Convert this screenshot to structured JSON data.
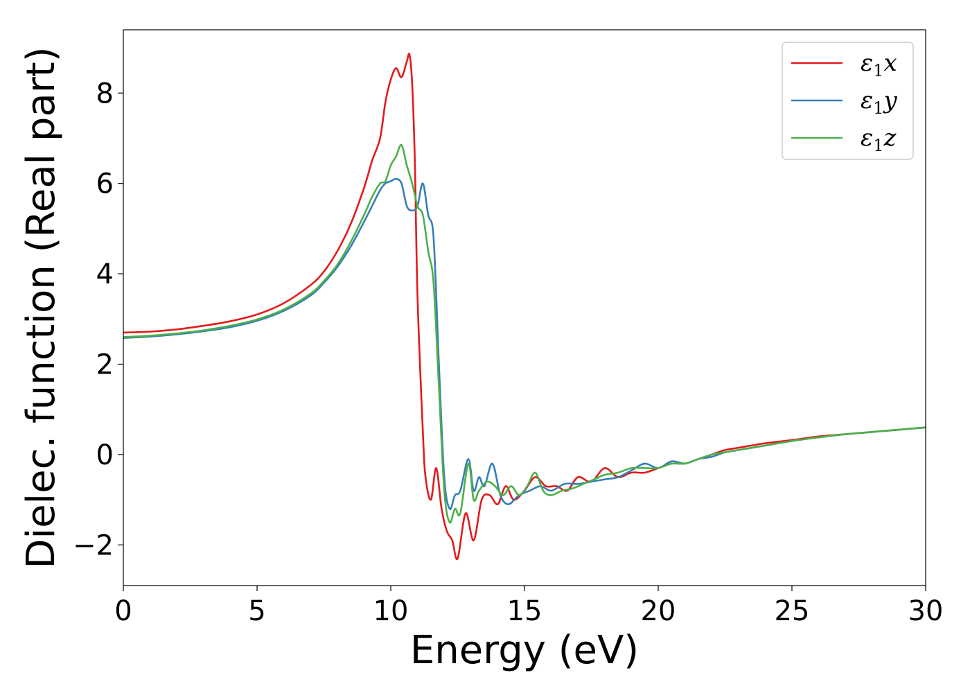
{
  "chart_data": {
    "type": "line",
    "xlabel": "Energy (eV)",
    "ylabel": "Dielec. function (Real part)",
    "xlim": [
      0,
      30
    ],
    "ylim": [
      -2.9,
      9.4
    ],
    "xticks": [
      0,
      5,
      10,
      15,
      20,
      25,
      30
    ],
    "yticks": [
      -2,
      0,
      2,
      4,
      6,
      8
    ],
    "xtick_labels": [
      "0",
      "5",
      "10",
      "15",
      "20",
      "25",
      "30"
    ],
    "ytick_labels": [
      "−2",
      "0",
      "2",
      "4",
      "6",
      "8"
    ],
    "grid": false,
    "legend": "top-right",
    "series": [
      {
        "name": "ε1x",
        "label_base": "ε",
        "label_sub": "1",
        "label_tail": "x",
        "color": "#e41a1c",
        "x": [
          0,
          1,
          2,
          3,
          4,
          5,
          6,
          7,
          7.5,
          8,
          8.5,
          9,
          9.3,
          9.6,
          9.8,
          10,
          10.2,
          10.4,
          10.6,
          10.7,
          10.8,
          10.9,
          11,
          11.2,
          11.3,
          11.5,
          11.7,
          11.9,
          12.1,
          12.3,
          12.5,
          12.8,
          13.1,
          13.4,
          13.7,
          14,
          14.3,
          14.6,
          15,
          15.4,
          15.8,
          16.2,
          16.6,
          17,
          17.5,
          18,
          18.5,
          19,
          19.5,
          20,
          20.5,
          21,
          21.5,
          22,
          22.5,
          23,
          24,
          25,
          26,
          27,
          28,
          29,
          30
        ],
        "y": [
          2.7,
          2.72,
          2.77,
          2.85,
          2.95,
          3.1,
          3.35,
          3.75,
          4.05,
          4.5,
          5.1,
          5.9,
          6.5,
          7.0,
          7.8,
          8.3,
          8.55,
          8.35,
          8.7,
          8.85,
          8.2,
          6.5,
          3.5,
          0.5,
          -0.5,
          -1.0,
          -0.3,
          -1.2,
          -1.7,
          -1.9,
          -2.3,
          -1.3,
          -1.9,
          -1.0,
          -0.9,
          -1.1,
          -0.7,
          -1.0,
          -0.8,
          -0.5,
          -0.7,
          -0.7,
          -0.8,
          -0.5,
          -0.6,
          -0.3,
          -0.5,
          -0.4,
          -0.4,
          -0.3,
          -0.2,
          -0.2,
          -0.1,
          0.0,
          0.1,
          0.15,
          0.25,
          0.32,
          0.4,
          0.45,
          0.5,
          0.55,
          0.6
        ]
      },
      {
        "name": "ε1y",
        "label_base": "ε",
        "label_sub": "1",
        "label_tail": "y",
        "color": "#377eb8",
        "x": [
          0,
          1,
          2,
          3,
          4,
          5,
          6,
          7,
          7.5,
          8,
          8.5,
          9,
          9.3,
          9.6,
          9.8,
          10,
          10.2,
          10.4,
          10.6,
          10.8,
          11,
          11.2,
          11.4,
          11.6,
          11.8,
          12,
          12.2,
          12.4,
          12.6,
          12.9,
          13.1,
          13.3,
          13.5,
          13.8,
          14.1,
          14.4,
          14.8,
          15.2,
          15.6,
          16,
          16.5,
          17,
          17.5,
          18,
          18.5,
          19,
          19.5,
          20,
          20.5,
          21,
          21.5,
          22,
          22.5,
          23,
          24,
          25,
          26,
          27,
          28,
          29,
          30
        ],
        "y": [
          2.58,
          2.61,
          2.66,
          2.73,
          2.82,
          2.96,
          3.18,
          3.52,
          3.8,
          4.15,
          4.6,
          5.15,
          5.5,
          5.85,
          6.0,
          6.05,
          6.1,
          6.0,
          5.5,
          5.4,
          5.5,
          6.0,
          5.3,
          4.8,
          2.0,
          -0.5,
          -1.2,
          -0.9,
          -0.8,
          -0.1,
          -0.8,
          -0.5,
          -0.7,
          -0.2,
          -0.9,
          -1.1,
          -0.9,
          -0.8,
          -0.7,
          -0.8,
          -0.65,
          -0.65,
          -0.6,
          -0.55,
          -0.5,
          -0.35,
          -0.2,
          -0.3,
          -0.15,
          -0.2,
          -0.1,
          -0.05,
          0.05,
          0.1,
          0.2,
          0.3,
          0.38,
          0.45,
          0.5,
          0.55,
          0.6
        ]
      },
      {
        "name": "ε1z",
        "label_base": "ε",
        "label_sub": "1",
        "label_tail": "z",
        "color": "#4daf4a",
        "x": [
          0,
          1,
          2,
          3,
          4,
          5,
          6,
          7,
          7.5,
          8,
          8.5,
          9,
          9.3,
          9.6,
          9.8,
          10,
          10.2,
          10.4,
          10.6,
          10.8,
          11,
          11.2,
          11.4,
          11.6,
          11.8,
          12,
          12.2,
          12.4,
          12.6,
          12.9,
          13.1,
          13.3,
          13.6,
          13.9,
          14.2,
          14.5,
          14.8,
          15.1,
          15.4,
          15.7,
          16,
          16.4,
          16.8,
          17.2,
          17.6,
          18,
          18.5,
          19,
          19.5,
          20,
          20.5,
          21,
          21.5,
          22,
          22.5,
          23,
          24,
          25,
          26,
          27,
          28,
          29,
          30
        ],
        "y": [
          2.6,
          2.63,
          2.68,
          2.75,
          2.85,
          2.99,
          3.21,
          3.56,
          3.84,
          4.2,
          4.7,
          5.3,
          5.7,
          6.0,
          6.05,
          6.4,
          6.6,
          6.85,
          6.4,
          6.0,
          5.5,
          5.3,
          4.5,
          3.8,
          1.5,
          -0.8,
          -1.5,
          -1.2,
          -1.3,
          -0.2,
          -1.0,
          -0.8,
          -0.6,
          -0.7,
          -0.9,
          -0.7,
          -0.9,
          -0.7,
          -0.4,
          -0.8,
          -0.9,
          -0.8,
          -0.75,
          -0.65,
          -0.55,
          -0.45,
          -0.4,
          -0.3,
          -0.3,
          -0.3,
          -0.2,
          -0.2,
          -0.1,
          0.0,
          0.05,
          0.1,
          0.2,
          0.3,
          0.38,
          0.45,
          0.5,
          0.55,
          0.6
        ]
      }
    ]
  }
}
